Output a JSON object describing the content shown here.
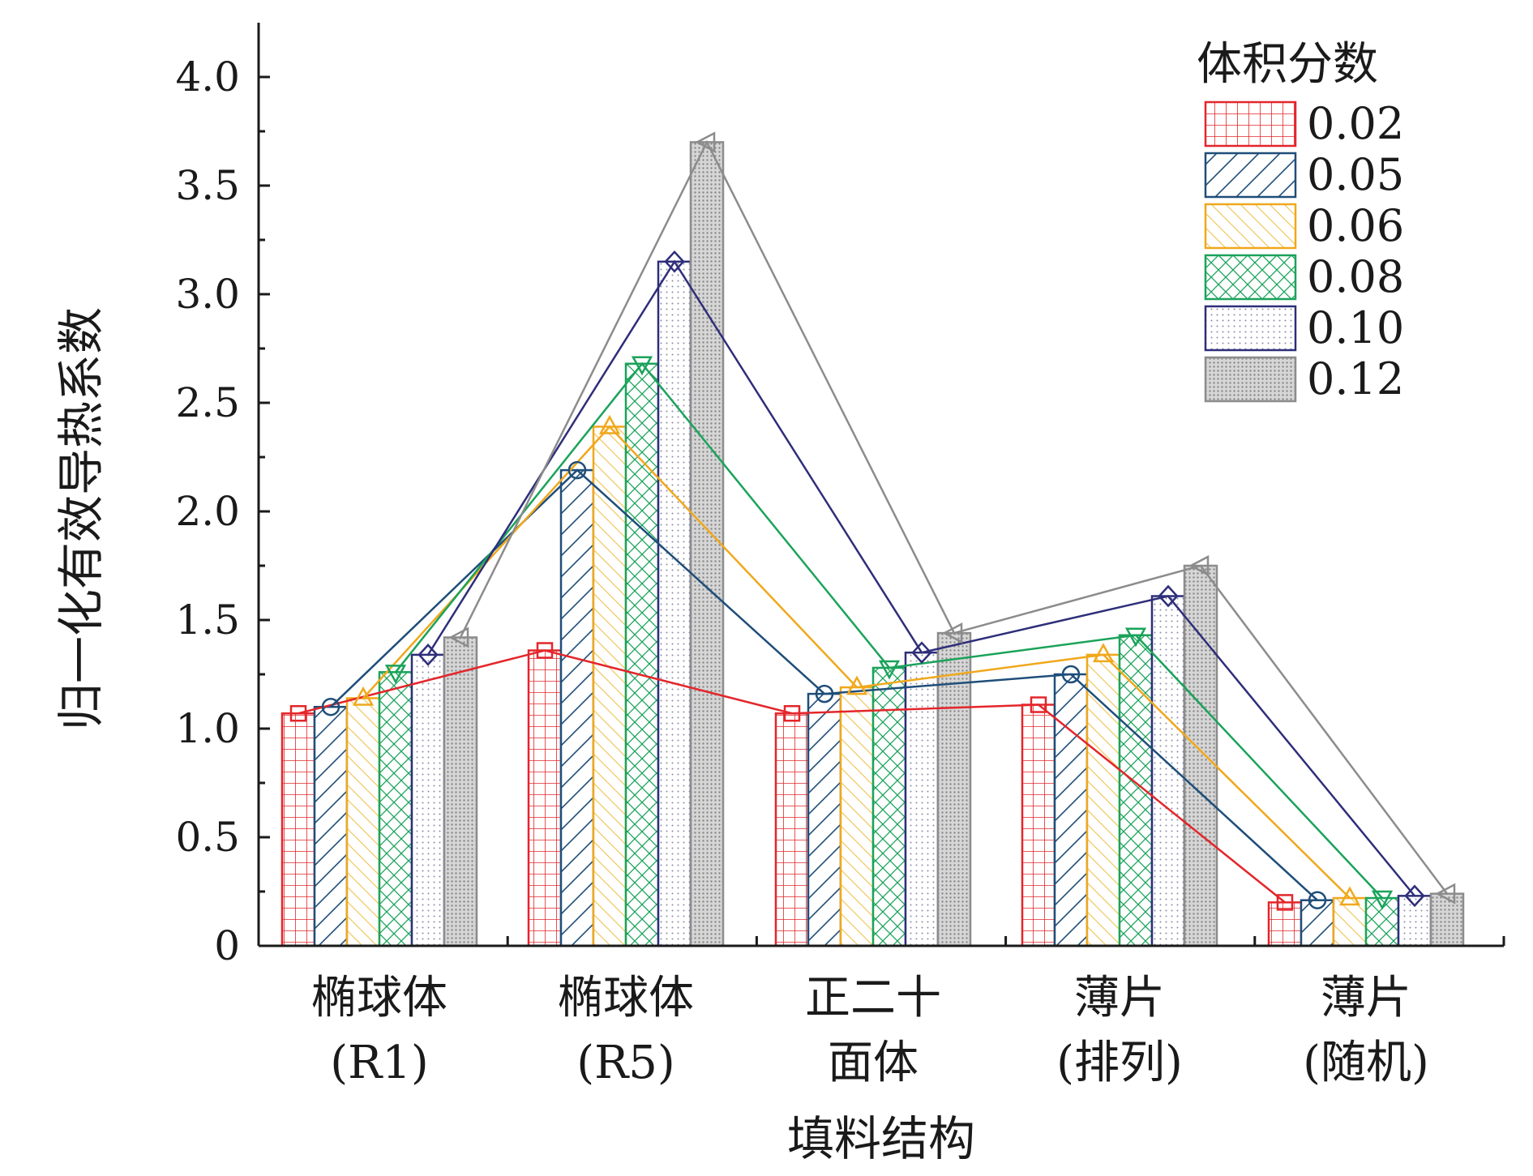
{
  "chart_data": {
    "type": "bar",
    "xlabel": "填料结构",
    "ylabel": "归一化有效导热系数",
    "ylim": [
      0,
      4.25
    ],
    "yticks": [
      {
        "value": 0,
        "label": "0"
      },
      {
        "value": 0.5,
        "label": "0.5"
      },
      {
        "value": 1.0,
        "label": "1.0"
      },
      {
        "value": 1.5,
        "label": "1.5"
      },
      {
        "value": 2.0,
        "label": "2.0"
      },
      {
        "value": 2.5,
        "label": "2.5"
      },
      {
        "value": 3.0,
        "label": "3.0"
      },
      {
        "value": 3.5,
        "label": "3.5"
      },
      {
        "value": 4.0,
        "label": "4.0"
      }
    ],
    "categories": [
      {
        "line1": "椭球体",
        "line2": "(R1)"
      },
      {
        "line1": "椭球体",
        "line2": "(R5)"
      },
      {
        "line1": "正二十",
        "line2": "面体"
      },
      {
        "line1": "薄片",
        "line2": "(排列)"
      },
      {
        "line1": "薄片",
        "line2": "(随机)"
      }
    ],
    "legend": {
      "title": "体积分数",
      "position": "top-right"
    },
    "grid": false,
    "series": [
      {
        "name": "0.02",
        "color": "#e3262b",
        "pattern": "grid",
        "marker": "square",
        "values": [
          1.07,
          1.36,
          1.07,
          1.11,
          0.2
        ]
      },
      {
        "name": "0.05",
        "color": "#1f4e79",
        "pattern": "diagonal",
        "marker": "circle",
        "values": [
          1.1,
          2.19,
          1.16,
          1.25,
          0.21
        ]
      },
      {
        "name": "0.06",
        "color": "#f0a81c",
        "pattern": "backdiag",
        "marker": "triangle-up",
        "values": [
          1.14,
          2.39,
          1.19,
          1.34,
          0.22
        ]
      },
      {
        "name": "0.08",
        "color": "#1aa35a",
        "pattern": "crosshatch",
        "marker": "triangle-down",
        "values": [
          1.26,
          2.68,
          1.28,
          1.43,
          0.22
        ]
      },
      {
        "name": "0.10",
        "color": "#2e2e7a",
        "pattern": "dots",
        "marker": "diamond",
        "values": [
          1.34,
          3.15,
          1.35,
          1.61,
          0.23
        ]
      },
      {
        "name": "0.12",
        "color": "#8c8c8c",
        "pattern": "dense",
        "marker": "triangle-left",
        "values": [
          1.42,
          3.7,
          1.44,
          1.75,
          0.24
        ]
      }
    ]
  }
}
